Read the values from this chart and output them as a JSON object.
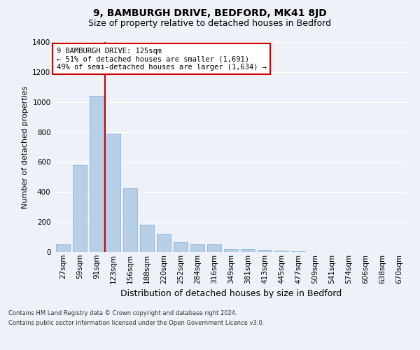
{
  "title": "9, BAMBURGH DRIVE, BEDFORD, MK41 8JD",
  "subtitle": "Size of property relative to detached houses in Bedford",
  "xlabel": "Distribution of detached houses by size in Bedford",
  "ylabel": "Number of detached properties",
  "categories": [
    "27sqm",
    "59sqm",
    "91sqm",
    "123sqm",
    "156sqm",
    "188sqm",
    "220sqm",
    "252sqm",
    "284sqm",
    "316sqm",
    "349sqm",
    "381sqm",
    "413sqm",
    "445sqm",
    "477sqm",
    "509sqm",
    "541sqm",
    "574sqm",
    "606sqm",
    "638sqm",
    "670sqm"
  ],
  "values": [
    50,
    578,
    1040,
    790,
    425,
    183,
    120,
    65,
    50,
    50,
    20,
    20,
    15,
    10,
    5,
    0,
    0,
    0,
    0,
    0,
    0
  ],
  "bar_color": "#b8cfe8",
  "bar_edge_color": "#7aaad4",
  "vline_x_index": 3,
  "vline_color": "#cc0000",
  "annotation_text": "9 BAMBURGH DRIVE: 125sqm\n← 51% of detached houses are smaller (1,691)\n49% of semi-detached houses are larger (1,634) →",
  "annotation_box_color": "#ffffff",
  "annotation_box_edge": "#cc0000",
  "ylim": [
    0,
    1400
  ],
  "yticks": [
    0,
    200,
    400,
    600,
    800,
    1000,
    1200,
    1400
  ],
  "bg_color": "#eef2f8",
  "grid_color": "#ffffff",
  "footer_line1": "Contains HM Land Registry data © Crown copyright and database right 2024.",
  "footer_line2": "Contains public sector information licensed under the Open Government Licence v3.0.",
  "title_fontsize": 10,
  "subtitle_fontsize": 9,
  "xlabel_fontsize": 9,
  "ylabel_fontsize": 8,
  "tick_fontsize": 7.5,
  "annotation_fontsize": 7.5,
  "footer_fontsize": 6
}
